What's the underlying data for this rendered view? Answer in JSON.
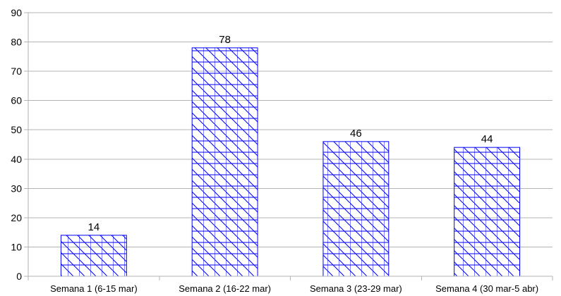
{
  "chart_data": {
    "type": "bar",
    "categories": [
      "Semana 1 (6-15 mar)",
      "Semana 2 (16-22 mar)",
      "Semana 3 (23-29 mar)",
      "Semana 4 (30 mar-5 abr)"
    ],
    "values": [
      14,
      78,
      46,
      44
    ],
    "ylim": [
      0,
      90
    ],
    "yticks": [
      0,
      10,
      20,
      30,
      40,
      50,
      60,
      70,
      80,
      90
    ],
    "grid": true,
    "legend": "none",
    "bar_fill": "hatched",
    "bar_color": "#0000ff",
    "data_labels": true
  }
}
